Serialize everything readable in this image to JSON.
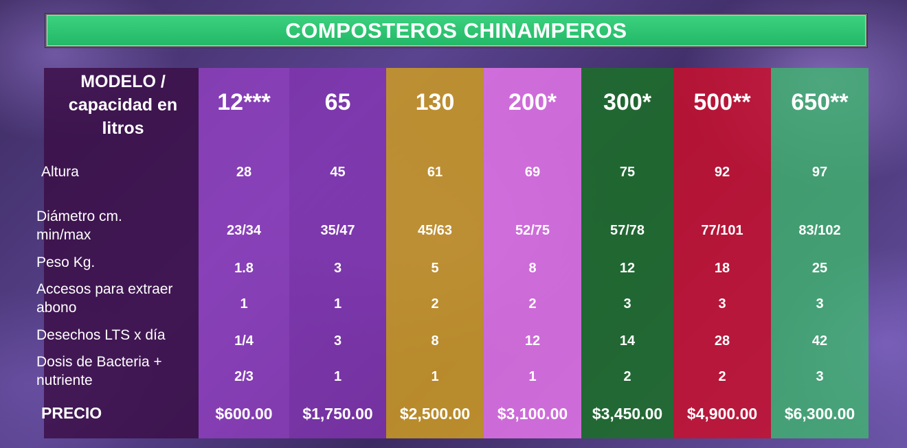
{
  "title": "COMPOSTEROS CHINAMPEROS",
  "row_labels": [
    "MODELO /\ncapacidad en\nlitros",
    "Altura",
    "Diámetro cm.\n  min/max",
    "Peso Kg.",
    "Accesos para extraer\n  abono",
    "Desechos LTS x día",
    "Dosis de Bacteria +\n  nutriente",
    "PRECIO"
  ],
  "columns": [
    {
      "model": "12***",
      "color": "#9a40c8",
      "values": [
        "28",
        "23/34",
        "1.8",
        "1",
        "1/4",
        "2/3"
      ],
      "price": "$600.00"
    },
    {
      "model": "65",
      "color": "#8a35b8",
      "values": [
        "45",
        "35/47",
        "3",
        "1",
        "3",
        "1"
      ],
      "price": "$1,750.00"
    },
    {
      "model": "130",
      "color": "#d3a020",
      "values": [
        "61",
        "45/63",
        "5",
        "2",
        "8",
        "1"
      ],
      "price": "$2,500.00"
    },
    {
      "model": "200*",
      "color": "#ea78ee",
      "values": [
        "69",
        "52/75",
        "8",
        "2",
        "12",
        "1"
      ],
      "price": "$3,100.00"
    },
    {
      "model": "300*",
      "color": "#1d6e2a",
      "values": [
        "75",
        "57/78",
        "12",
        "3",
        "14",
        "2"
      ],
      "price": "$3,450.00"
    },
    {
      "model": "500**",
      "color": "#c8102e",
      "values": [
        "92",
        "77/101",
        "18",
        "3",
        "28",
        "2"
      ],
      "price": "$4,900.00"
    },
    {
      "model": "650**",
      "color": "#3fb86e",
      "values": [
        "97",
        "83/102",
        "25",
        "3",
        "42",
        "3"
      ],
      "price": "$6,300.00"
    }
  ],
  "label_column_color": "#3a0d45"
}
